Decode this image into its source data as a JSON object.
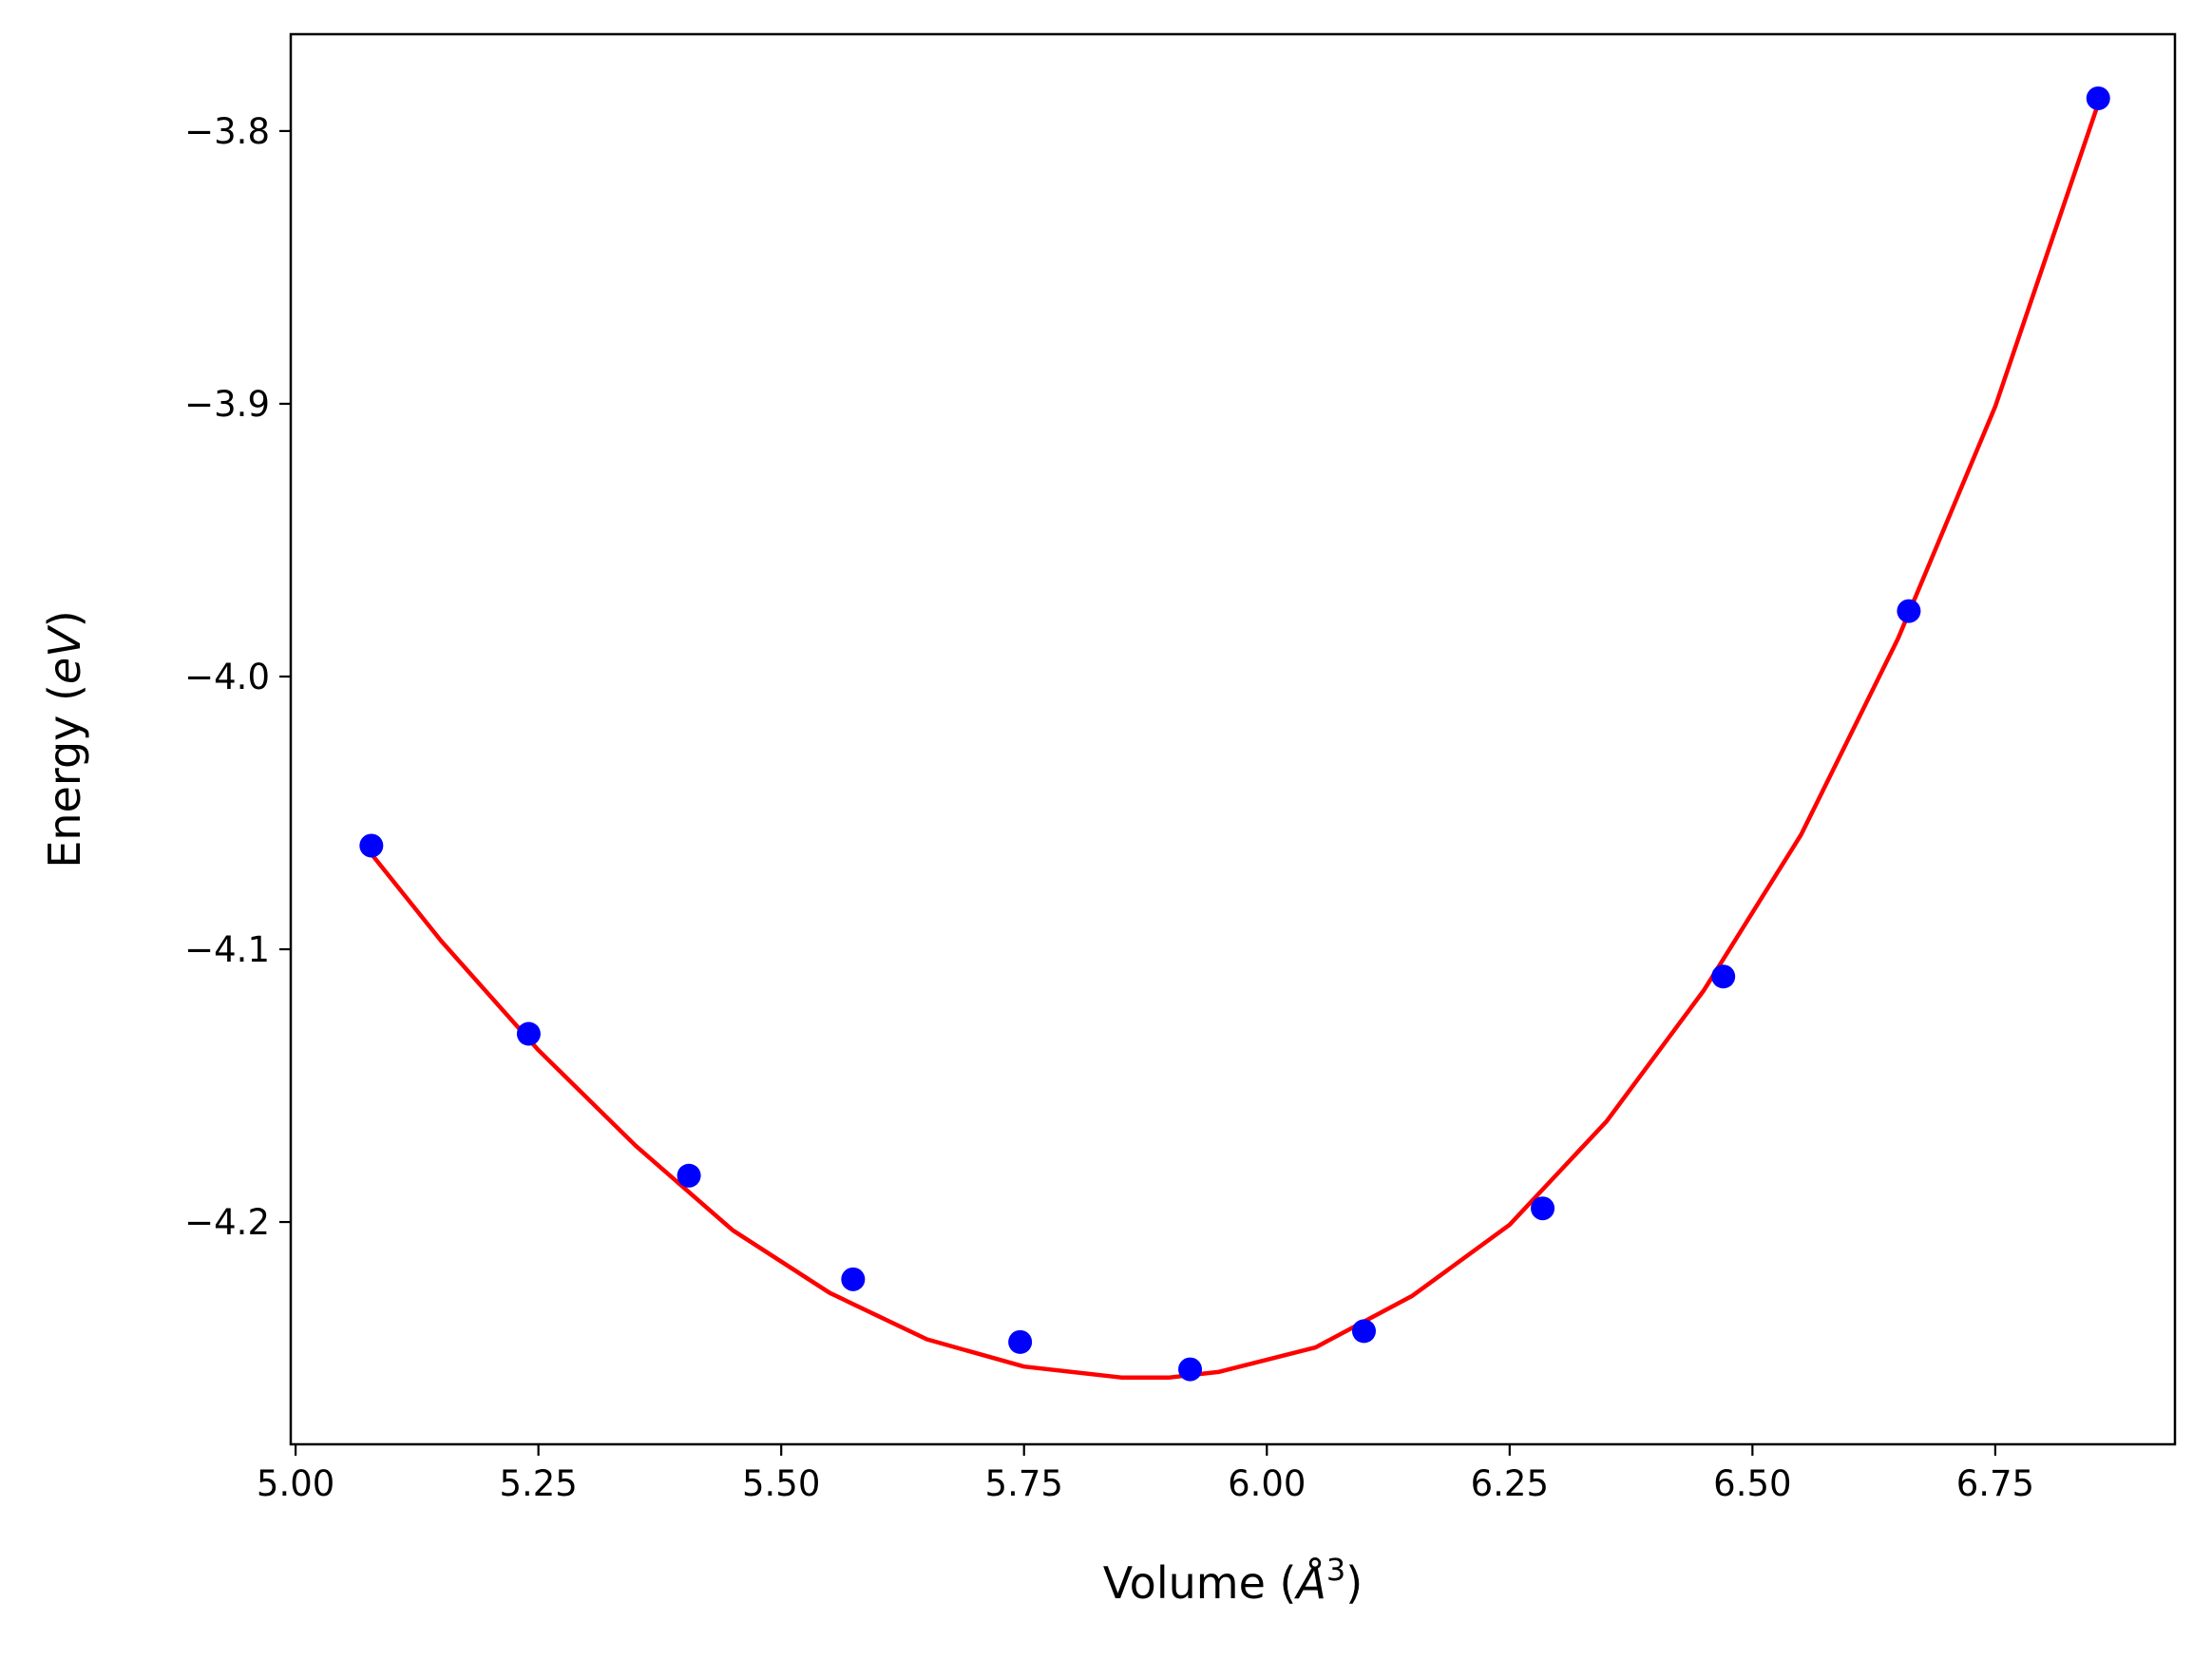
{
  "chart_data": {
    "type": "scatter",
    "title": "",
    "xlabel": {
      "pre": "Volume (",
      "sym": "Å",
      "sup": "3",
      "post": ")"
    },
    "ylabel": {
      "pre": "Energy (",
      "sym": "eV",
      "post": ")"
    },
    "xlim": [
      4.995,
      6.935
    ],
    "ylim": [
      -4.2815,
      -3.7645
    ],
    "xticks": [
      5.0,
      5.25,
      5.5,
      5.75,
      6.0,
      6.25,
      6.5,
      6.75
    ],
    "xtick_labels": [
      "5.00",
      "5.25",
      "5.50",
      "5.75",
      "6.00",
      "6.25",
      "6.50",
      "6.75"
    ],
    "yticks": [
      -3.8,
      -3.9,
      -4.0,
      -4.1,
      -4.2
    ],
    "ytick_labels": [
      "−3.8",
      "−3.9",
      "−4.0",
      "−4.1",
      "−4.2"
    ],
    "grid": false,
    "legend": null,
    "series": [
      {
        "kind": "points",
        "color": "#0000ff",
        "x": [
          5.078,
          5.24,
          5.405,
          5.574,
          5.746,
          5.921,
          6.1,
          6.284,
          6.47,
          6.661,
          6.856
        ],
        "y": [
          -4.062,
          -4.131,
          -4.183,
          -4.221,
          -4.244,
          -4.254,
          -4.24,
          -4.195,
          -4.11,
          -3.976,
          -3.788
        ]
      },
      {
        "kind": "fit-line",
        "color": "#ff0000",
        "x": [
          5.078,
          5.15,
          5.25,
          5.35,
          5.45,
          5.55,
          5.65,
          5.75,
          5.85,
          5.9,
          5.95,
          6.05,
          6.15,
          6.25,
          6.35,
          6.45,
          6.55,
          6.65,
          6.75,
          6.856
        ],
        "y": [
          -4.065,
          -4.097,
          -4.137,
          -4.172,
          -4.203,
          -4.226,
          -4.243,
          -4.253,
          -4.257,
          -4.257,
          -4.255,
          -4.246,
          -4.227,
          -4.201,
          -4.163,
          -4.115,
          -4.058,
          -3.986,
          -3.901,
          -3.79
        ]
      }
    ]
  }
}
